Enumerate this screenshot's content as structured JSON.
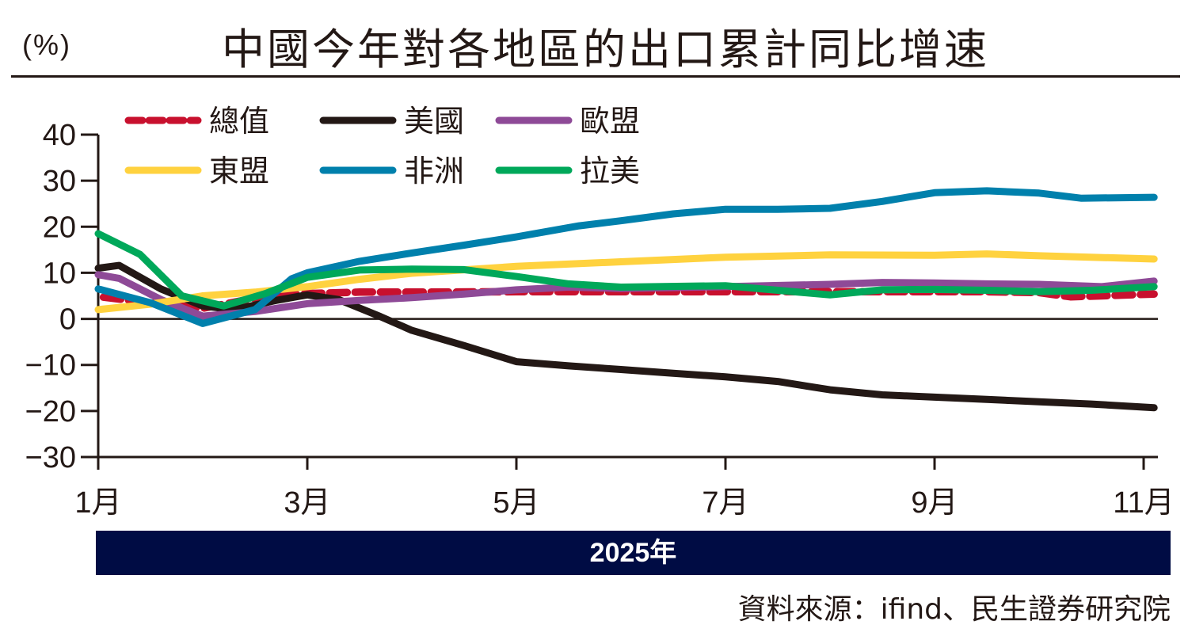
{
  "header": {
    "unit_label": "(%)",
    "title": "中國今年對各地區的出口累計同比增速"
  },
  "footer": {
    "year_label": "2025年",
    "source": "資料來源：ifind、民生證券研究院"
  },
  "chart_data": {
    "type": "line",
    "title": "中國今年對各地區的出口累計同比增速",
    "ylabel": "(%)",
    "xlabel": "2025年",
    "ylim": [
      -30,
      40
    ],
    "yticks": [
      40,
      30,
      20,
      10,
      0,
      -10,
      -20,
      -30
    ],
    "xlim": [
      1,
      11.1
    ],
    "xticks": [
      1,
      3,
      5,
      7,
      9,
      11
    ],
    "xtick_labels": [
      "1月",
      "3月",
      "5月",
      "7月",
      "9月",
      "11月"
    ],
    "grid": false,
    "legend_position": "top-left",
    "series": [
      {
        "name": "總值",
        "color": "#c8102e",
        "dashed": true,
        "x": [
          1.05,
          1.5,
          2.0,
          2.5,
          3.0,
          3.5,
          4.0,
          5.0,
          6.0,
          7.0,
          8.0,
          8.5,
          9.0,
          9.5,
          10.0,
          10.3,
          10.6,
          11.1
        ],
        "y": [
          4.7,
          3.5,
          2.3,
          4.5,
          5.5,
          5.8,
          5.8,
          5.9,
          5.9,
          5.9,
          5.9,
          5.9,
          5.9,
          5.9,
          5.7,
          4.8,
          5.0,
          5.4
        ]
      },
      {
        "name": "美國",
        "color": "#231815",
        "dashed": false,
        "x": [
          1.0,
          1.2,
          1.6,
          2.0,
          2.3,
          2.7,
          3.0,
          3.3,
          3.7,
          4.0,
          4.5,
          5.0,
          5.5,
          6.0,
          6.5,
          7.0,
          7.5,
          8.0,
          8.5,
          9.0,
          9.5,
          10.0,
          10.5,
          11.1
        ],
        "y": [
          11.0,
          11.6,
          6.5,
          2.8,
          2.0,
          4.0,
          5.2,
          4.2,
          0.5,
          -2.5,
          -5.8,
          -9.3,
          -10.2,
          -11.0,
          -11.8,
          -12.6,
          -13.6,
          -15.4,
          -16.5,
          -17.0,
          -17.5,
          -18.0,
          -18.5,
          -19.3
        ]
      },
      {
        "name": "歐盟",
        "color": "#8e4a97",
        "dashed": false,
        "x": [
          1.0,
          1.2,
          1.6,
          2.0,
          2.5,
          3.0,
          3.5,
          4.0,
          4.5,
          5.0,
          5.5,
          6.0,
          7.0,
          8.0,
          8.5,
          9.0,
          9.5,
          10.0,
          10.6,
          11.1
        ],
        "y": [
          9.6,
          8.8,
          4.2,
          0.6,
          1.6,
          3.3,
          4.0,
          4.6,
          5.4,
          6.3,
          6.9,
          6.6,
          7.0,
          7.5,
          7.9,
          7.8,
          7.6,
          7.5,
          7.0,
          8.2
        ]
      },
      {
        "name": "東盟",
        "color": "#ffd23f",
        "dashed": false,
        "x": [
          1.0,
          1.5,
          2.0,
          2.5,
          3.0,
          3.5,
          4.0,
          5.0,
          6.0,
          7.0,
          8.0,
          9.0,
          9.5,
          10.0,
          11.1
        ],
        "y": [
          2.0,
          3.2,
          5.0,
          5.8,
          7.0,
          8.6,
          9.9,
          11.4,
          12.4,
          13.4,
          13.9,
          13.8,
          14.1,
          13.7,
          13.0
        ]
      },
      {
        "name": "非洲",
        "color": "#0080ac",
        "dashed": false,
        "x": [
          1.0,
          1.5,
          2.0,
          2.5,
          2.85,
          3.0,
          3.5,
          4.0,
          4.5,
          5.0,
          5.6,
          6.0,
          6.5,
          7.0,
          7.5,
          8.0,
          8.5,
          9.0,
          9.5,
          10.0,
          10.4,
          11.1
        ],
        "y": [
          6.5,
          3.5,
          -1.0,
          2.0,
          8.7,
          10.0,
          12.5,
          14.3,
          16.0,
          17.8,
          20.2,
          21.3,
          22.8,
          23.8,
          23.8,
          24.0,
          25.5,
          27.4,
          27.8,
          27.3,
          26.2,
          26.4
        ]
      },
      {
        "name": "拉美",
        "color": "#00a85a",
        "dashed": false,
        "x": [
          1.0,
          1.4,
          1.8,
          2.2,
          2.6,
          3.0,
          3.5,
          4.0,
          4.5,
          5.0,
          5.5,
          6.0,
          7.0,
          8.0,
          8.5,
          9.0,
          9.5,
          10.0,
          10.5,
          11.1
        ],
        "y": [
          18.5,
          14.0,
          5.0,
          2.8,
          5.5,
          9.0,
          10.6,
          10.8,
          10.7,
          9.2,
          7.6,
          6.9,
          7.2,
          5.2,
          6.3,
          6.4,
          6.2,
          5.9,
          6.2,
          7.0
        ]
      }
    ]
  }
}
